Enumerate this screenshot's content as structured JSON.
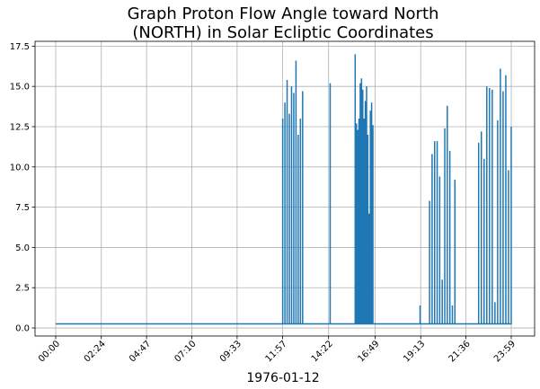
{
  "chart_data": {
    "type": "line",
    "title": "Graph Proton Flow Angle toward North\n(NORTH) in Solar Ecliptic Coordinates",
    "xlabel": "1976-01-12",
    "ylabel": "",
    "xlim": [
      "00:00",
      "23:59"
    ],
    "ylim": [
      -0.5,
      17.8
    ],
    "grid": true,
    "x_ticks": [
      "00:00",
      "02:24",
      "04:47",
      "07:10",
      "09:33",
      "11:57",
      "14:22",
      "16:49",
      "19:13",
      "21:36",
      "23:59"
    ],
    "y_ticks": [
      "0.0",
      "2.5",
      "5.0",
      "7.5",
      "10.0",
      "12.5",
      "15.0",
      "17.5"
    ],
    "color": "#1f77b4",
    "baseline": 0.25,
    "spike_clusters": [
      {
        "start": "11:57",
        "end": "13:00",
        "peaks": [
          13.0,
          14.0,
          15.4,
          13.3,
          15.0,
          14.6,
          16.6,
          12.0,
          13.0,
          14.7
        ]
      },
      {
        "start": "14:27",
        "end": "14:27",
        "peaks": [
          15.2
        ]
      },
      {
        "start": "15:46",
        "end": "16:42",
        "peaks": [
          17.0,
          12.7,
          12.3,
          13.0,
          15.2,
          15.5,
          14.8,
          13.0,
          14.1,
          15.0,
          12.0,
          7.1,
          13.5,
          14.0,
          12.6
        ]
      },
      {
        "start": "19:11",
        "end": "19:11",
        "peaks": [
          1.4
        ]
      },
      {
        "start": "19:41",
        "end": "21:01",
        "peaks": [
          7.9,
          10.8,
          11.6,
          11.6,
          9.4,
          3.0,
          12.4,
          13.8,
          11.0,
          1.4,
          9.2
        ]
      },
      {
        "start": "22:16",
        "end": "23:59",
        "peaks": [
          11.5,
          12.2,
          10.5,
          15.0,
          14.9,
          14.8,
          1.6,
          12.9,
          16.1,
          14.7,
          15.7,
          9.8,
          12.5
        ]
      }
    ]
  }
}
